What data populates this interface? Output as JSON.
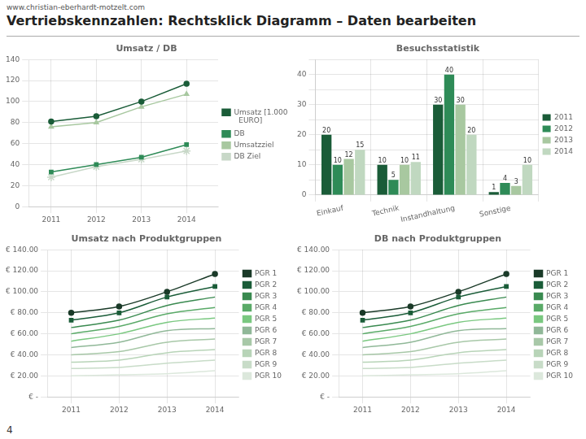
{
  "title": "Vertriebskennzahlen: Rechtsklick Diagramm – Daten bearbeiten",
  "annotations": [
    "www.christian-eberhardt-motzelt.com",
    "4"
  ],
  "chart_data": [
    {
      "type": "line",
      "title": "Umsatz / DB",
      "x": [
        2011,
        2012,
        2013,
        2014
      ],
      "series": [
        {
          "name": "Umsatz [1.000\n  EURO]",
          "color": "#1a5c38",
          "marker": "circle",
          "values": [
            81,
            86,
            100,
            117
          ]
        },
        {
          "name": "DB",
          "color": "#2e8b57",
          "marker": "square",
          "values": [
            33,
            40,
            47,
            59
          ]
        },
        {
          "name": "Umsatzziel",
          "color": "#a8c8a0",
          "marker": "triangle",
          "values": [
            76,
            80,
            95,
            107
          ]
        },
        {
          "name": "DB Ziel",
          "color": "#c8d8c8",
          "marker": "star",
          "values": [
            28,
            38,
            45,
            53
          ]
        }
      ],
      "xlim": [
        2010.5,
        2014.7
      ],
      "xticks": [
        2011,
        2012,
        2013,
        2014
      ],
      "ylim": [
        0,
        140
      ],
      "yticks": [
        0,
        20,
        40,
        60,
        80,
        100,
        120,
        140
      ],
      "grid": true,
      "legend": "right"
    },
    {
      "type": "bar",
      "title": "Besuchsstatistik",
      "categories": [
        "Einkauf",
        "Technik",
        "Instandhaltung",
        "Sonstige"
      ],
      "series": [
        {
          "name": "2011",
          "color": "#1a5c38",
          "values": [
            20,
            10,
            30,
            1
          ]
        },
        {
          "name": "2012",
          "color": "#2e8b57",
          "values": [
            10,
            5,
            40,
            4
          ]
        },
        {
          "name": "2013",
          "color": "#a8c8a0",
          "values": [
            12,
            10,
            30,
            3
          ]
        },
        {
          "name": "2014",
          "color": "#c0d8c0",
          "values": [
            15,
            11,
            20,
            10
          ]
        }
      ],
      "ylim": [
        0,
        45
      ],
      "yticks": [
        0,
        {
          "value": 5,
          "label": null
        },
        10,
        {
          "value": 15,
          "label": null
        },
        20,
        {
          "value": 25,
          "label": null
        },
        30,
        {
          "value": 35,
          "label": null
        },
        40,
        {
          "value": 45,
          "label": null
        }
      ],
      "grid": true,
      "legend": "right",
      "data_labels": true
    },
    {
      "type": "line",
      "title": "Umsatz nach Produktgruppen",
      "x": [
        2011,
        2012,
        2013,
        2014
      ],
      "series": [
        {
          "name": "PGR 1",
          "color": "#1a3a28",
          "marker": "circle",
          "line_style": "smooth",
          "values": [
            80,
            86,
            100,
            117
          ]
        },
        {
          "name": "PGR 2",
          "color": "#1a5c38",
          "marker": "square",
          "line_style": "smooth",
          "values": [
            73,
            80,
            95,
            105
          ]
        },
        {
          "name": "PGR 3",
          "color": "#3a8a50",
          "marker": "none",
          "line_style": "smooth",
          "values": [
            66,
            73,
            87,
            95
          ]
        },
        {
          "name": "PGR 4",
          "color": "#5aaa68",
          "marker": "none",
          "line_style": "smooth",
          "values": [
            60,
            67,
            79,
            85
          ]
        },
        {
          "name": "PGR 5",
          "color": "#7ac880",
          "marker": "none",
          "line_style": "smooth",
          "values": [
            53,
            60,
            71,
            75
          ]
        },
        {
          "name": "PGR 6",
          "color": "#90b898",
          "marker": "none",
          "line_style": "smooth",
          "values": [
            47,
            52,
            63,
            65
          ]
        },
        {
          "name": "PGR 7",
          "color": "#a8c8a8",
          "marker": "none",
          "line_style": "smooth",
          "values": [
            40,
            43,
            52,
            55
          ]
        },
        {
          "name": "PGR 8",
          "color": "#b8d4b8",
          "marker": "none",
          "line_style": "smooth",
          "values": [
            33,
            35,
            42,
            45
          ]
        },
        {
          "name": "PGR 9",
          "color": "#c8dcc8",
          "marker": "none",
          "line_style": "smooth",
          "values": [
            27,
            28,
            32,
            35
          ]
        },
        {
          "name": "PGR 10",
          "color": "#dce8dc",
          "marker": "none",
          "line_style": "smooth",
          "values": [
            20,
            21,
            22,
            25
          ]
        }
      ],
      "xlim": [
        2010.5,
        2014.5
      ],
      "xticks": [
        2011,
        2012,
        2013,
        2014
      ],
      "ylim": [
        0,
        140
      ],
      "yticks": [
        {
          "value": 0,
          "label": "€ -"
        },
        {
          "value": 20,
          "label": "€ 20.00"
        },
        {
          "value": 40,
          "label": "€ 40.00"
        },
        {
          "value": 60,
          "label": "€ 60.00"
        },
        {
          "value": 80,
          "label": "€ 80.00"
        },
        {
          "value": 100,
          "label": "€ 100.00"
        },
        {
          "value": 120,
          "label": "€ 120.00"
        },
        {
          "value": 140,
          "label": "€ 140.00"
        }
      ],
      "grid": true,
      "legend": "right"
    },
    {
      "type": "line",
      "title": "DB nach Produktgruppen",
      "x": [
        2011,
        2012,
        2013,
        2014
      ],
      "series": [
        {
          "name": "PGR 1",
          "color": "#1a3a28",
          "marker": "circle",
          "line_style": "smooth",
          "values": [
            80,
            86,
            100,
            117
          ]
        },
        {
          "name": "PGR 2",
          "color": "#1a5c38",
          "marker": "square",
          "line_style": "smooth",
          "values": [
            73,
            80,
            95,
            105
          ]
        },
        {
          "name": "PGR 3",
          "color": "#3a8a50",
          "marker": "none",
          "line_style": "smooth",
          "values": [
            66,
            73,
            87,
            95
          ]
        },
        {
          "name": "PGR 4",
          "color": "#5aaa68",
          "marker": "none",
          "line_style": "smooth",
          "values": [
            60,
            67,
            79,
            85
          ]
        },
        {
          "name": "PGR 5",
          "color": "#7ac880",
          "marker": "none",
          "line_style": "smooth",
          "values": [
            53,
            60,
            71,
            75
          ]
        },
        {
          "name": "PGR 6",
          "color": "#90b898",
          "marker": "none",
          "line_style": "smooth",
          "values": [
            47,
            52,
            63,
            65
          ]
        },
        {
          "name": "PGR 7",
          "color": "#a8c8a8",
          "marker": "none",
          "line_style": "smooth",
          "values": [
            40,
            43,
            52,
            55
          ]
        },
        {
          "name": "PGR 8",
          "color": "#b8d4b8",
          "marker": "none",
          "line_style": "smooth",
          "values": [
            33,
            35,
            42,
            45
          ]
        },
        {
          "name": "PGR 9",
          "color": "#c8dcc8",
          "marker": "none",
          "line_style": "smooth",
          "values": [
            27,
            28,
            32,
            35
          ]
        },
        {
          "name": "PGR 10",
          "color": "#dce8dc",
          "marker": "none",
          "line_style": "smooth",
          "values": [
            20,
            21,
            22,
            25
          ]
        }
      ],
      "xlim": [
        2010.5,
        2014.5
      ],
      "xticks": [
        2011,
        2012,
        2013,
        2014
      ],
      "ylim": [
        0,
        140
      ],
      "yticks": [
        {
          "value": 0,
          "label": "€ -"
        },
        {
          "value": 20,
          "label": "€ 20.00"
        },
        {
          "value": 40,
          "label": "€ 40.00"
        },
        {
          "value": 60,
          "label": "€ 60.00"
        },
        {
          "value": 80,
          "label": "€ 80.00"
        },
        {
          "value": 100,
          "label": "€ 100.00"
        },
        {
          "value": 120,
          "label": "€ 120.00"
        },
        {
          "value": 140,
          "label": "€ 140.00"
        }
      ],
      "grid": true,
      "legend": "right"
    }
  ]
}
